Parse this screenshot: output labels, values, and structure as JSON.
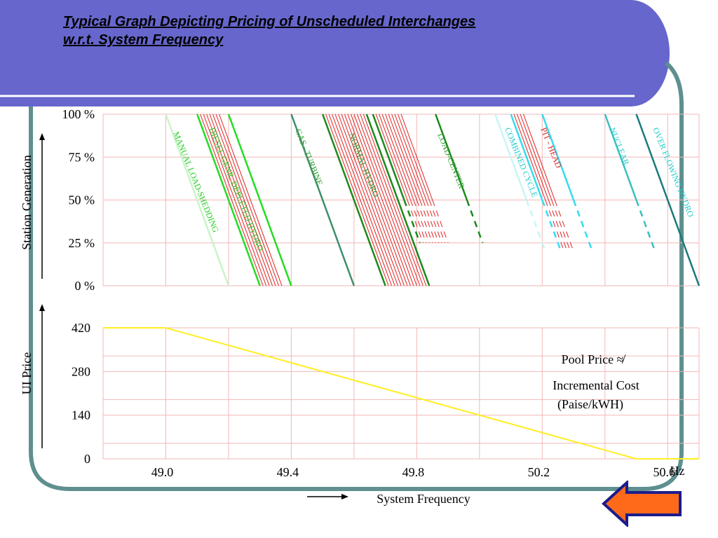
{
  "slide": {
    "title_line1": "Typical Graph Depicting Pricing of Unscheduled Interchanges",
    "title_line2": "w.r.t. System Frequency",
    "colors": {
      "header_band": "#6666cc",
      "frame_border": "#5f8f8f",
      "grid": "#f2b7b7",
      "nav_arrow_fill": "#ff6a1a",
      "nav_arrow_border": "#1c1c8c"
    },
    "nav_icon": "left-arrow-icon"
  },
  "chart_data": [
    {
      "type": "line",
      "name": "station-generation",
      "ylabel": "Station Generation",
      "y_ticks": [
        "100 %",
        "75 %",
        "50  %",
        "25 %",
        "0 %"
      ],
      "y_tick_values": [
        100,
        75,
        50,
        25,
        0
      ],
      "ylim": [
        0,
        100
      ],
      "xlim": [
        48.8,
        50.7
      ],
      "grid": true,
      "series": [
        {
          "name": "MANUAL LOAD-SHEDDING",
          "color": "#c8f5c8",
          "label_color": "#22cc22",
          "x_top": 49.0,
          "x_bottom": 49.2,
          "line_count": 1,
          "dash_below": null
        },
        {
          "name": "DIESEL GENR. DEPLETED HYDRO",
          "color": "#22dd22",
          "label_color": "#22cc22",
          "x_top": 49.1,
          "x_bottom": 49.3,
          "line_count": 1,
          "dash_below": null,
          "bundle_color": "#dd2222",
          "bundle_x_top": [
            49.11,
            49.12,
            49.13,
            49.14,
            49.15,
            49.16,
            49.17
          ],
          "bundle_x_bottom": [
            49.31,
            49.32,
            49.33,
            49.34,
            49.35,
            49.36,
            49.37
          ]
        },
        {
          "name": "",
          "color": "#22dd22",
          "x_top": 49.2,
          "x_bottom": 49.4,
          "line_count": 1,
          "dash_below": null
        },
        {
          "name": "GAS - TURBINE",
          "color": "#3d8f6a",
          "label_color": "#2a9a2a",
          "x_top": 49.4,
          "x_bottom": 49.6,
          "line_count": 1,
          "dash_below": null
        },
        {
          "name": "NORMAL HYDRO",
          "color": "#1a8a1a",
          "label_color": "#2a9a2a",
          "x_top": 49.5,
          "x_bottom": 49.7,
          "line_count": 1,
          "dash_below": null,
          "bundle_color": "#dd2222",
          "bundle_x_top": [
            49.51,
            49.52,
            49.53,
            49.54,
            49.55,
            49.56,
            49.57,
            49.58,
            49.59,
            49.6,
            49.61,
            49.62,
            49.63
          ],
          "bundle_x_bottom": [
            49.71,
            49.72,
            49.73,
            49.74,
            49.75,
            49.76,
            49.77,
            49.78,
            49.79,
            49.8,
            49.81,
            49.82,
            49.83
          ]
        },
        {
          "name": "",
          "color": "#1a8a1a",
          "x_top": 49.64,
          "x_bottom": 49.84,
          "line_count": 1,
          "dash_below": null
        },
        {
          "name": "LOAD-CENTER",
          "color": "#1a8a1a",
          "label_color": "#2a9a2a",
          "x_top": 49.66,
          "x_bottom": 49.86,
          "line_count": 1,
          "dash_below": 50,
          "bundle_color": "#dd2222",
          "bundle_x_top": [
            49.67,
            49.68,
            49.69,
            49.7,
            49.71,
            49.72,
            49.73,
            49.74,
            49.75
          ],
          "bundle_x_bottom": [
            49.87,
            49.88,
            49.89,
            49.9,
            49.91,
            49.92,
            49.93,
            49.94,
            49.95
          ],
          "bottom_y": 25
        },
        {
          "name": "",
          "color": "#1a8a1a",
          "x_top": 49.86,
          "x_bottom": 50.06,
          "line_count": 1,
          "dash_below": 50,
          "bottom_y": 25
        },
        {
          "name": "COMBINED CYCLE",
          "color": "#c8f5f5",
          "label_color": "#22cccc",
          "x_top": 50.05,
          "x_bottom": 50.25,
          "line_count": 1,
          "dash_below": 50,
          "bottom_y": 20
        },
        {
          "name": "PIT - HEAD",
          "color": "#33ddee",
          "label_color": "#dd2222",
          "x_top": 50.1,
          "x_bottom": 50.3,
          "line_count": 1,
          "dash_below": 50,
          "bottom_y": 20,
          "bundle_color": "#dd2222",
          "bundle_x_top": [
            50.11,
            50.12,
            50.13,
            50.14
          ],
          "bundle_x_bottom": [
            50.31,
            50.32,
            50.33,
            50.34
          ],
          "bundle_bottom_y": 20
        },
        {
          "name": "",
          "color": "#33ddee",
          "x_top": 50.2,
          "x_bottom": 50.4,
          "line_count": 1,
          "dash_below": 50,
          "bottom_y": 20
        },
        {
          "name": "NUCLEAR",
          "color": "#3bbfbf",
          "label_color": "#22cccc",
          "x_top": 50.4,
          "x_bottom": 50.6,
          "line_count": 1,
          "dash_below": 50,
          "bottom_y": 20
        },
        {
          "name": "OVER FLOWING HYDRO",
          "color": "#1a7a7a",
          "label_color": "#22cccc",
          "x_top": 50.5,
          "x_bottom": 50.7,
          "line_count": 1,
          "dash_below": null
        }
      ]
    },
    {
      "type": "line",
      "name": "ui-price",
      "ylabel": "UI     Price",
      "y_ticks": [
        "420",
        "280",
        "140",
        "0"
      ],
      "y_tick_values": [
        420,
        280,
        140,
        0
      ],
      "ylim": [
        0,
        420
      ],
      "xlim": [
        48.8,
        50.7
      ],
      "x_ticks": [
        "49.0",
        "49.4",
        "49.8",
        "50.2",
        "50.6"
      ],
      "x_tick_values": [
        49.0,
        49.4,
        49.8,
        50.2,
        50.6
      ],
      "x_unit": "Hz",
      "xlabel": "System Frequency",
      "grid": true,
      "annotation_lines": [
        "Pool Price ≉",
        "Incremental Cost",
        "(Paise/kWH)"
      ],
      "series": [
        {
          "name": "",
          "color": "#ffee22",
          "x": [
            48.8,
            49.0,
            50.5,
            50.7
          ],
          "y": [
            420,
            420,
            0,
            0
          ]
        }
      ]
    }
  ]
}
